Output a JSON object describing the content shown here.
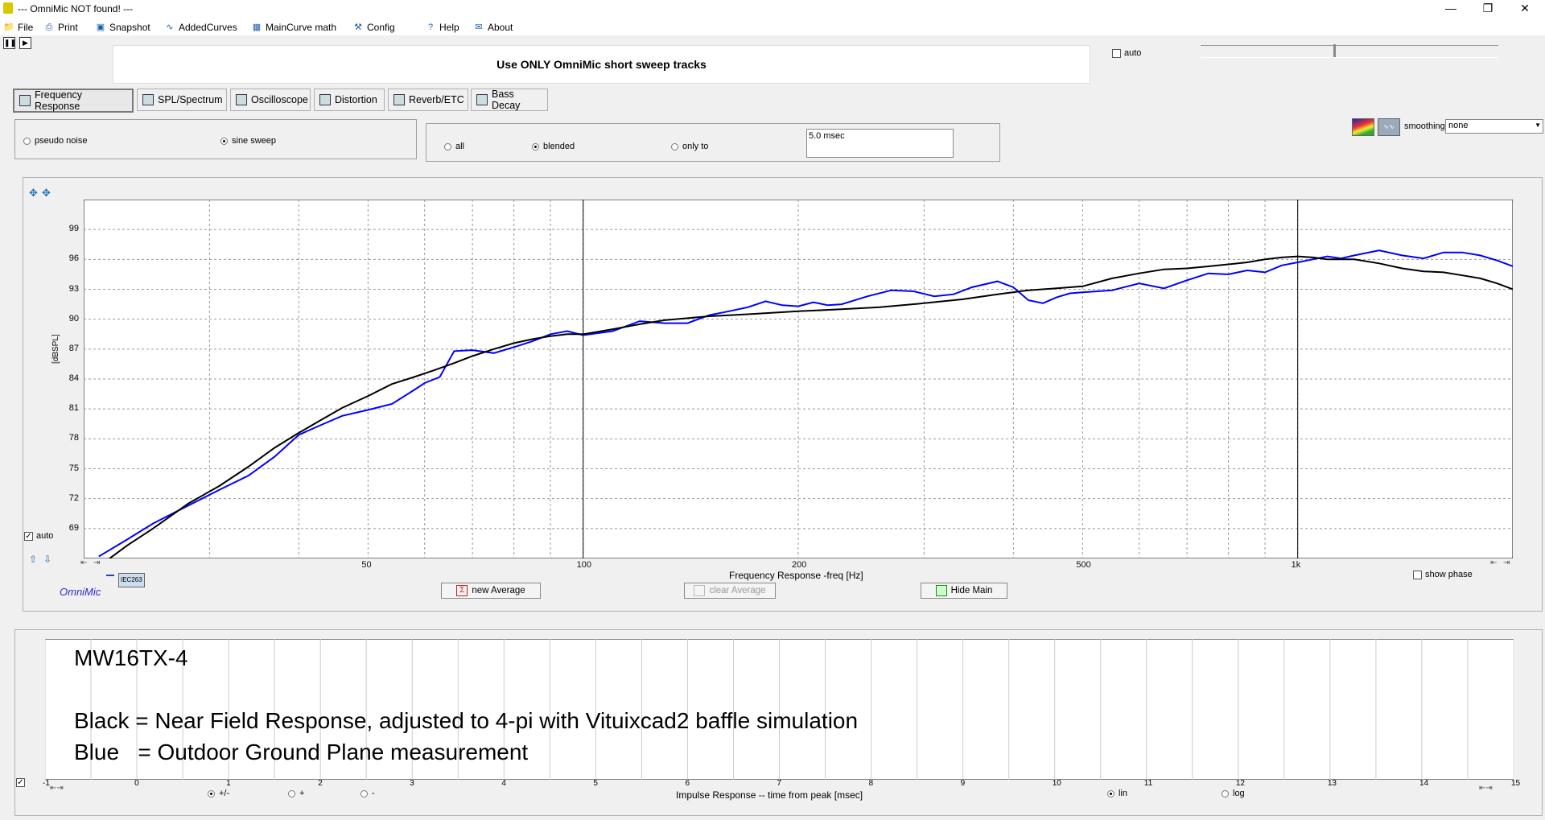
{
  "window": {
    "title": "--- OmniMic NOT found! ---"
  },
  "menu": [
    {
      "label": "File",
      "icon": "folder-icon",
      "name": "menu-file"
    },
    {
      "label": "Print",
      "icon": "printer-icon",
      "name": "menu-print"
    },
    {
      "label": "Snapshot",
      "icon": "camera-icon",
      "name": "menu-snapshot"
    },
    {
      "label": "AddedCurves",
      "icon": "curves-icon",
      "name": "menu-addedcurves"
    },
    {
      "label": "MainCurve math",
      "icon": "calculator-icon",
      "name": "menu-maincurve-math"
    },
    {
      "label": "Config",
      "icon": "tools-icon",
      "name": "menu-config"
    },
    {
      "label": "Help",
      "icon": "help-icon",
      "name": "menu-help"
    },
    {
      "label": "About",
      "icon": "speech-icon",
      "name": "menu-about"
    }
  ],
  "notice": "Use ONLY OmniMic short sweep tracks",
  "top_auto_label": "auto",
  "tabs": [
    {
      "label": "Frequency Response",
      "name": "tab-frequency-response",
      "icon": "freq-response-icon",
      "active": true
    },
    {
      "label": "SPL/Spectrum",
      "name": "tab-spl-spectrum",
      "icon": "mic-icon",
      "active": false
    },
    {
      "label": "Oscilloscope",
      "name": "tab-oscilloscope",
      "icon": "oscilloscope-icon",
      "active": false
    },
    {
      "label": "Distortion",
      "name": "tab-distortion",
      "icon": "distortion-icon",
      "active": false
    },
    {
      "label": "Reverb/ETC",
      "name": "tab-reverb-etc",
      "icon": "reverb-icon",
      "active": false
    },
    {
      "label": "Bass Decay",
      "name": "tab-bass-decay",
      "icon": "bass-decay-icon",
      "active": false
    }
  ],
  "signal_mode": {
    "pseudo_noise": "pseudo noise",
    "sine_sweep": "sine sweep",
    "selected": "sine sweep"
  },
  "gating": {
    "all": "all",
    "blended": "blended",
    "only_to": "only to",
    "selected": "blended",
    "time_value": "5.0 msec"
  },
  "smoothing": {
    "label": "smoothing",
    "value": "none"
  },
  "graph": {
    "auto_label": "auto",
    "ylabel": "[dBSPL]",
    "xlabel": "Frequency Response -freq [Hz]",
    "brand": "OmniMic",
    "mic_tag": "IEC263",
    "show_phase_label": "show phase",
    "buttons": {
      "new_average": "new Average",
      "clear_average": "clear Average",
      "hide_main": "Hide Main"
    },
    "colors": {
      "black_curve": "#000000",
      "blue_curve": "#0000ff"
    }
  },
  "chart_data": {
    "type": "line",
    "title": "",
    "xlabel": "Frequency Response -freq [Hz]",
    "ylabel": "[dBSPL]",
    "x_scale": "log",
    "xlim": [
      20,
      2000
    ],
    "ylim": [
      66,
      102
    ],
    "yticks": [
      69,
      72,
      75,
      78,
      81,
      84,
      87,
      90,
      93,
      96,
      99
    ],
    "xticks": [
      {
        "value": 50,
        "label": "50"
      },
      {
        "value": 100,
        "label": "100"
      },
      {
        "value": 200,
        "label": "200"
      },
      {
        "value": 500,
        "label": "500"
      },
      {
        "value": 1000,
        "label": "1k"
      }
    ],
    "grid": true,
    "cursor_lines_hz": [
      100,
      1000
    ],
    "series": [
      {
        "color": "#0000ff",
        "x": [
          21,
          23,
          25,
          28,
          31,
          34,
          37,
          40,
          43,
          46,
          50,
          54,
          58,
          60,
          63,
          66,
          70,
          75,
          80,
          85,
          90,
          95,
          100,
          110,
          120,
          130,
          140,
          150,
          160,
          170,
          180,
          190,
          200,
          210,
          220,
          230,
          240,
          250,
          270,
          290,
          310,
          330,
          350,
          380,
          400,
          420,
          440,
          460,
          480,
          500,
          550,
          600,
          650,
          700,
          750,
          800,
          850,
          900,
          950,
          1000,
          1050,
          1100,
          1150,
          1200,
          1300,
          1400,
          1500,
          1600,
          1700,
          1800,
          1900,
          2000
        ],
        "y": [
          66.2,
          67.9,
          69.5,
          71.3,
          72.9,
          74.3,
          76.2,
          78.4,
          79.4,
          80.3,
          80.9,
          81.5,
          82.9,
          83.6,
          84.2,
          86.8,
          86.9,
          86.6,
          87.2,
          87.8,
          88.5,
          88.8,
          88.4,
          88.8,
          89.8,
          89.6,
          89.6,
          90.4,
          90.8,
          91.2,
          91.8,
          91.4,
          91.3,
          91.7,
          91.4,
          91.5,
          91.9,
          92.3,
          92.9,
          92.8,
          92.3,
          92.5,
          93.2,
          93.8,
          93.2,
          91.9,
          91.6,
          92.2,
          92.6,
          92.7,
          92.9,
          93.6,
          93.1,
          93.9,
          94.6,
          94.5,
          94.9,
          94.7,
          95.4,
          95.7,
          96.0,
          96.3,
          96.1,
          96.4,
          96.9,
          96.4,
          96.1,
          96.7,
          96.7,
          96.4,
          95.9,
          95.3
        ]
      },
      {
        "color": "#000000",
        "x": [
          21,
          23,
          25,
          28,
          31,
          34,
          37,
          40,
          43,
          46,
          50,
          54,
          58,
          62,
          66,
          70,
          75,
          80,
          85,
          90,
          95,
          100,
          110,
          120,
          130,
          140,
          150,
          170,
          200,
          230,
          260,
          300,
          340,
          380,
          420,
          460,
          500,
          550,
          600,
          650,
          700,
          750,
          800,
          850,
          900,
          950,
          1000,
          1050,
          1100,
          1200,
          1300,
          1400,
          1500,
          1600,
          1700,
          1800,
          1900,
          2000
        ],
        "y": [
          65.2,
          67.3,
          69.0,
          71.5,
          73.3,
          75.2,
          77.1,
          78.6,
          79.9,
          81.1,
          82.3,
          83.5,
          84.2,
          84.9,
          85.6,
          86.3,
          87.0,
          87.6,
          88.0,
          88.3,
          88.5,
          88.5,
          89.0,
          89.5,
          89.9,
          90.1,
          90.3,
          90.5,
          90.8,
          91.0,
          91.2,
          91.6,
          92.0,
          92.5,
          92.9,
          93.1,
          93.3,
          94.1,
          94.6,
          95.0,
          95.1,
          95.3,
          95.5,
          95.7,
          96.0,
          96.2,
          96.3,
          96.2,
          96.0,
          96.0,
          95.6,
          95.1,
          94.8,
          94.7,
          94.4,
          94.1,
          93.6,
          93.0
        ]
      }
    ]
  },
  "notes": {
    "line1": "MW16TX-4",
    "line2": "Black = Near Field Response, adjusted to 4-pi with Vituixcad2 baffle simulation",
    "line3": "Blue   = Outdoor Ground Plane measurement"
  },
  "impulse": {
    "xlabel": "Impulse Response  -- time from peak [msec]",
    "ticks": [
      "-1",
      "0",
      "1",
      "2",
      "3",
      "4",
      "5",
      "6",
      "7",
      "8",
      "9",
      "10",
      "11",
      "12",
      "13",
      "14",
      "15"
    ],
    "polarity": {
      "both": "+/-",
      "plus": "+",
      "minus": "-",
      "selected": "+/-"
    },
    "scale": {
      "lin": "lin",
      "log": "log",
      "selected": "lin"
    }
  }
}
